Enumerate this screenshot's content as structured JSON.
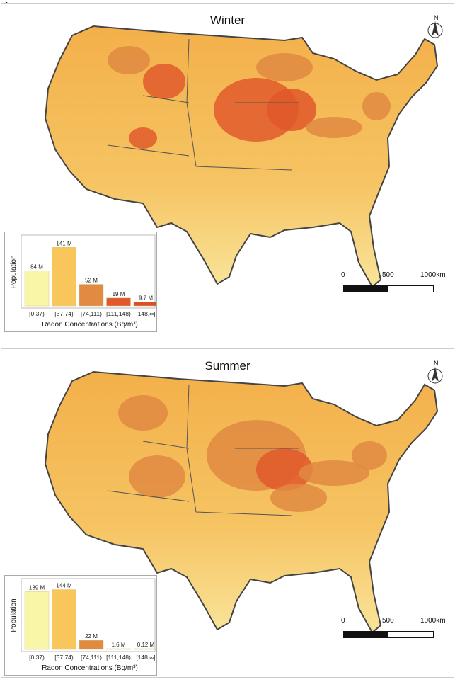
{
  "panels": [
    {
      "label": "A",
      "title": "Winter"
    },
    {
      "label": "B",
      "title": "Summer"
    }
  ],
  "scale_bar": {
    "ticks": [
      "0",
      "500",
      "1000km"
    ]
  },
  "north_arrow": {
    "label": "N"
  },
  "colors": {
    "c1": "#faf6a8",
    "c2": "#f8c65a",
    "c3": "#e08a42",
    "c4": "#e0582c",
    "c5": "#d94f28"
  },
  "chart_data": [
    {
      "type": "bar",
      "title": "Winter",
      "xlabel": "Radon Concentrations (Bq/m³)",
      "ylabel": "Population",
      "categories": [
        "[0,37)",
        "[37,74)",
        "[74,111)",
        "[111,148)",
        "[148,∞]"
      ],
      "values": [
        84,
        141,
        52,
        19,
        9.7
      ],
      "data_labels": [
        "84 M",
        "141 M",
        "52 M",
        "19 M",
        "9.7 M"
      ],
      "unit": "M"
    },
    {
      "type": "bar",
      "title": "Summer",
      "xlabel": "Radon Concentrations (Bq/m³)",
      "ylabel": "Population",
      "categories": [
        "[0,37)",
        "[37,74)",
        "[74,111)",
        "[111,148)",
        "[148,∞]"
      ],
      "values": [
        139,
        144,
        22,
        1.6,
        0.12
      ],
      "data_labels": [
        "139 M",
        "144 M",
        "22 M",
        "1.6 M",
        "0.12 M"
      ],
      "unit": "M"
    }
  ]
}
